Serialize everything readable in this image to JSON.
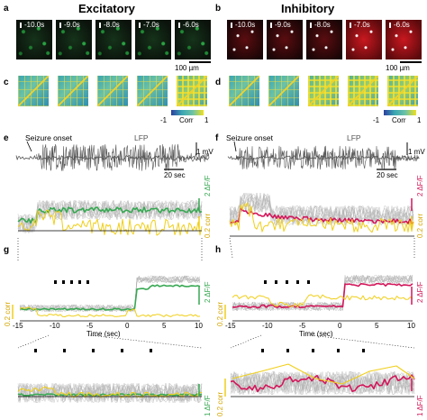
{
  "panels": {
    "a": "a",
    "b": "b",
    "c": "c",
    "d": "d",
    "e": "e",
    "f": "f",
    "g": "g",
    "h": "h"
  },
  "titles": {
    "excitatory": "Excitatory",
    "inhibitory": "Inhibitory"
  },
  "colors": {
    "excitatory": "#37a852",
    "inhibitory": "#d3165a",
    "corr": "#f0cf1a",
    "gray": "#b5b5b5",
    "lfp": "#555555"
  },
  "time_labels": [
    "-10.0s",
    "-9.0s",
    "-8.0s",
    "-7.0s",
    "-6.0s"
  ],
  "scalebar_um": "100 µm",
  "colorbar": {
    "min": "-1",
    "max": "1",
    "label": "Corr"
  },
  "lfp": {
    "seizure_onset": "Seizure onset",
    "lfp": "LFP",
    "mv": "1 mV",
    "sec": "20 sec"
  },
  "scale_labels": {
    "df_2": "2 ΔF/F",
    "df_1": "1 ΔF/F",
    "corr_02": "0.2 corr"
  },
  "zoom_axis": {
    "ticks": [
      "-15",
      "-10",
      "-5",
      "0",
      "5",
      "10"
    ],
    "xlabel": "Time (sec)"
  }
}
